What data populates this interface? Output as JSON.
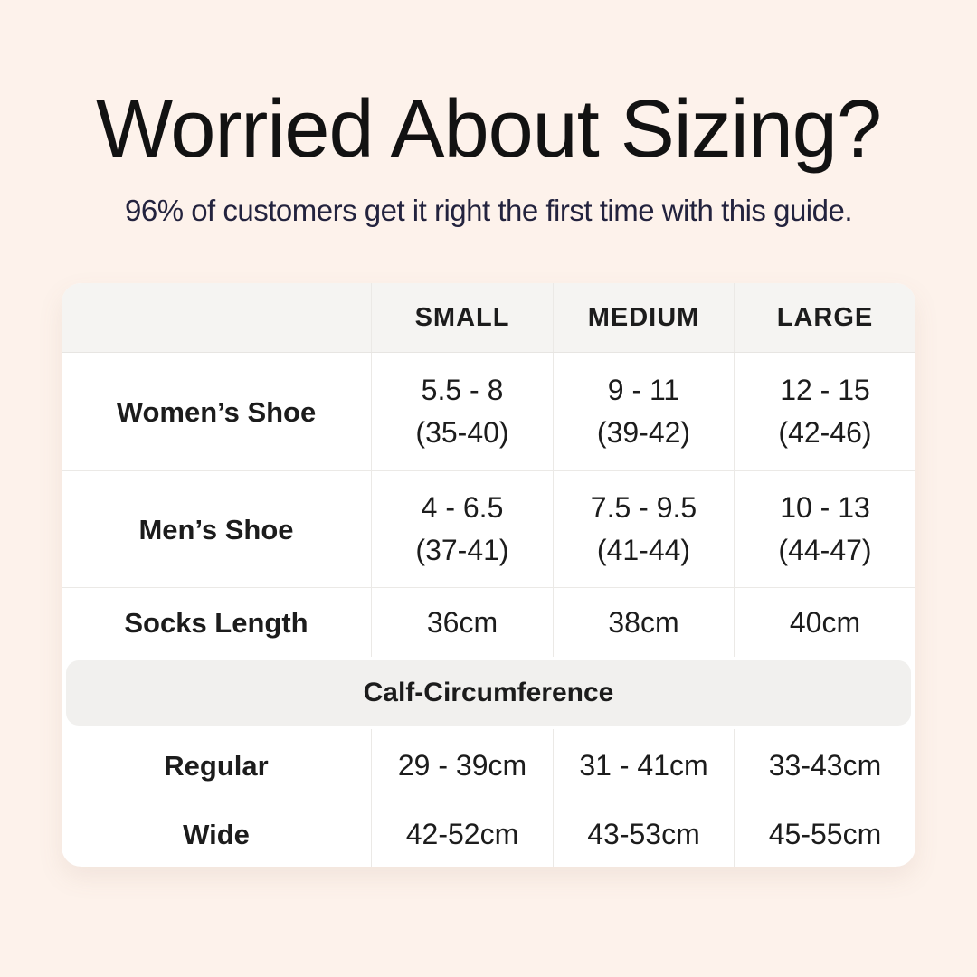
{
  "header": {
    "title": "Worried About Sizing?",
    "subtitle": "96% of customers get it right the first time with this guide."
  },
  "colors": {
    "page_background": "#fdf2eb",
    "title_text": "#121212",
    "subtitle_text": "#23233e",
    "card_background": "#ffffff",
    "header_row_background": "#f5f4f2",
    "section_band_background": "#f1f0ee",
    "gridline": "#ebe9e6",
    "table_text": "#1c1c1c"
  },
  "table": {
    "size_headers": [
      "SMALL",
      "MEDIUM",
      "LARGE"
    ],
    "rows": [
      {
        "label": "Women’s Shoe",
        "cells": [
          [
            "5.5 - 8",
            "(35-40)"
          ],
          [
            "9 - 11",
            "(39-42)"
          ],
          [
            "12 - 15",
            "(42-46)"
          ]
        ]
      },
      {
        "label": "Men’s Shoe",
        "cells": [
          [
            "4 - 6.5",
            "(37-41)"
          ],
          [
            "7.5 - 9.5",
            "(41-44)"
          ],
          [
            "10 - 13",
            "(44-47)"
          ]
        ]
      },
      {
        "label": "Socks Length",
        "cells": [
          [
            "36cm"
          ],
          [
            "38cm"
          ],
          [
            "40cm"
          ]
        ]
      }
    ],
    "section_header": "Calf-Circumference",
    "calf_rows": [
      {
        "label": "Regular",
        "cells": [
          [
            "29 - 39cm"
          ],
          [
            "31 - 41cm"
          ],
          [
            "33-43cm"
          ]
        ]
      },
      {
        "label": "Wide",
        "cells": [
          [
            "42-52cm"
          ],
          [
            "43-53cm"
          ],
          [
            "45-55cm"
          ]
        ]
      }
    ]
  },
  "chart_data": {
    "type": "table",
    "title": "Worried About Sizing?",
    "subtitle": "96% of customers get it right the first time with this guide.",
    "columns": [
      "",
      "SMALL",
      "MEDIUM",
      "LARGE"
    ],
    "rows": [
      [
        "Women’s Shoe",
        "5.5 - 8 (35-40)",
        "9 - 11 (39-42)",
        "12 - 15 (42-46)"
      ],
      [
        "Men’s Shoe",
        "4 - 6.5 (37-41)",
        "7.5 - 9.5 (41-44)",
        "10 - 13 (44-47)"
      ],
      [
        "Socks Length",
        "36cm",
        "38cm",
        "40cm"
      ],
      [
        "Calf-Circumference",
        "",
        "",
        ""
      ],
      [
        "Regular",
        "29 - 39cm",
        "31 - 41cm",
        "33-43cm"
      ],
      [
        "Wide",
        "42-52cm",
        "43-53cm",
        "45-55cm"
      ]
    ]
  }
}
